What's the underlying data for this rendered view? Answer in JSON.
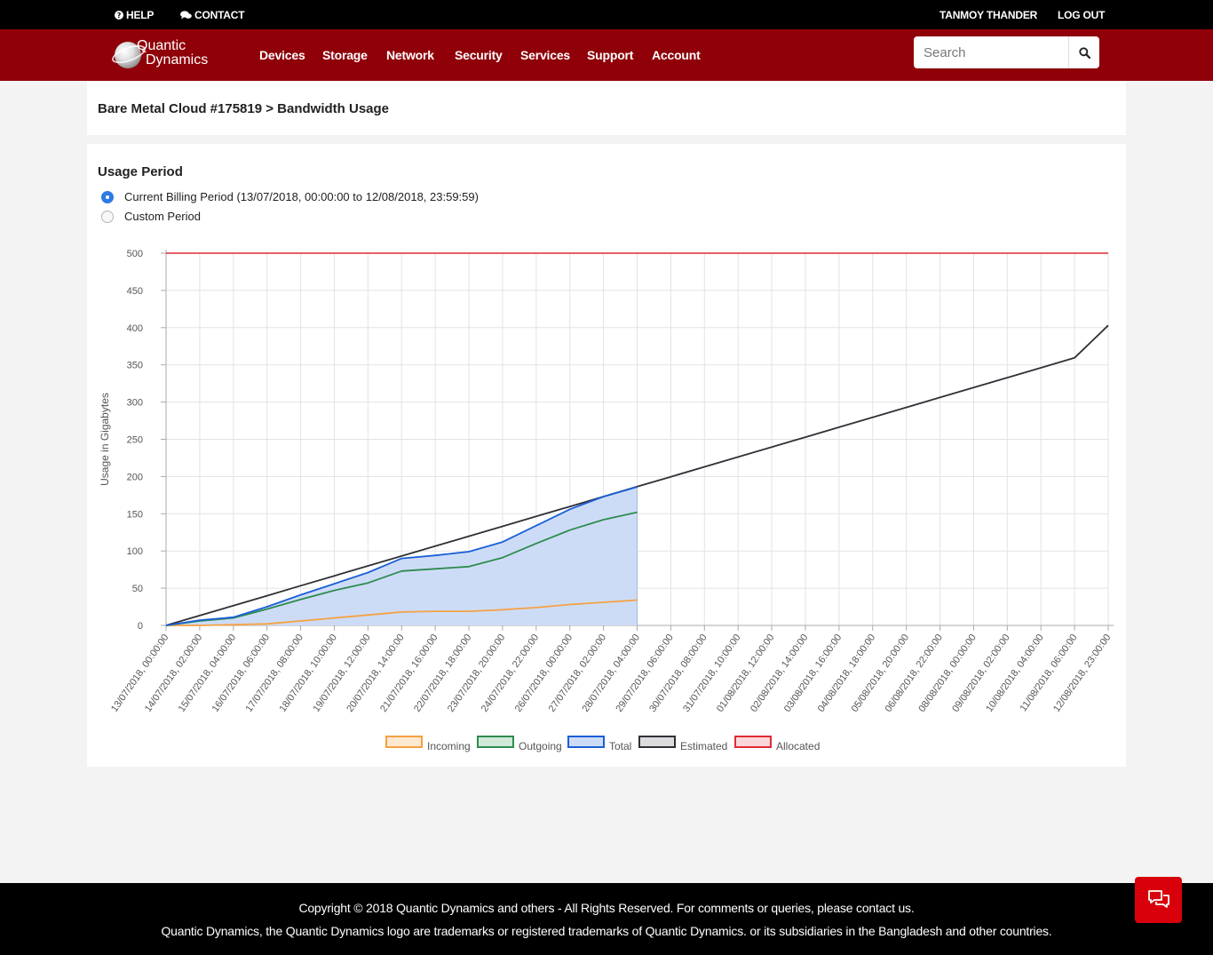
{
  "topbar": {
    "help": "HELP",
    "contact": "CONTACT",
    "user": "TANMOY THANDER",
    "logout": "LOG OUT"
  },
  "brand": {
    "line1": "Quantic",
    "line2": "Dynamics"
  },
  "nav": {
    "items": [
      "Devices",
      "Storage",
      "Network",
      "Security",
      "Services",
      "Support",
      "Account"
    ]
  },
  "search": {
    "placeholder": "Search",
    "value": ""
  },
  "breadcrumb": "Bare Metal Cloud #175819 > Bandwidth Usage",
  "usage_period": {
    "title": "Usage Period",
    "options": [
      {
        "label": "Current Billing Period (13/07/2018, 00:00:00 to 12/08/2018, 23:59:59)",
        "selected": true
      },
      {
        "label": "Custom Period",
        "selected": false
      }
    ]
  },
  "chart_data": {
    "type": "line",
    "title": "",
    "xlabel": "",
    "ylabel": "Usage in Gigabytes",
    "ylim": [
      0,
      500
    ],
    "yticks": [
      0,
      50,
      100,
      150,
      200,
      250,
      300,
      350,
      400,
      450,
      500
    ],
    "grid": true,
    "legend_position": "bottom",
    "x": [
      "13/07/2018, 00:00:00",
      "14/07/2018, 02:00:00",
      "15/07/2018, 04:00:00",
      "16/07/2018, 06:00:00",
      "17/07/2018, 08:00:00",
      "18/07/2018, 10:00:00",
      "19/07/2018, 12:00:00",
      "20/07/2018, 14:00:00",
      "21/07/2018, 16:00:00",
      "22/07/2018, 18:00:00",
      "23/07/2018, 20:00:00",
      "24/07/2018, 22:00:00",
      "26/07/2018, 00:00:00",
      "27/07/2018, 02:00:00",
      "28/07/2018, 04:00:00",
      "29/07/2018, 06:00:00",
      "30/07/2018, 08:00:00",
      "31/07/2018, 10:00:00",
      "01/08/2018, 12:00:00",
      "02/08/2018, 14:00:00",
      "03/08/2018, 16:00:00",
      "04/08/2018, 18:00:00",
      "05/08/2018, 20:00:00",
      "06/08/2018, 22:00:00",
      "08/08/2018, 00:00:00",
      "09/08/2018, 02:00:00",
      "10/08/2018, 04:00:00",
      "11/08/2018, 06:00:00",
      "12/08/2018, 23:00:00"
    ],
    "series": [
      {
        "name": "Incoming",
        "color": "#f5a142",
        "fill": "#fde8d0",
        "values": [
          0,
          0,
          1,
          2,
          6,
          10,
          14,
          18,
          19,
          19,
          21,
          24,
          28,
          31,
          34,
          null,
          null,
          null,
          null,
          null,
          null,
          null,
          null,
          null,
          null,
          null,
          null,
          null,
          null
        ]
      },
      {
        "name": "Outgoing",
        "color": "#2e8b4f",
        "fill": "#cfe8d8",
        "values": [
          0,
          6,
          10,
          22,
          35,
          47,
          57,
          73,
          76,
          79,
          91,
          110,
          128,
          142,
          152,
          null,
          null,
          null,
          null,
          null,
          null,
          null,
          null,
          null,
          null,
          null,
          null,
          null,
          null
        ]
      },
      {
        "name": "Total",
        "color": "#1a5fd6",
        "fill": "#cddcf6",
        "values": [
          0,
          7,
          11,
          25,
          41,
          56,
          71,
          90,
          94,
          99,
          112,
          134,
          156,
          173,
          186,
          null,
          null,
          null,
          null,
          null,
          null,
          null,
          null,
          null,
          null,
          null,
          null,
          null,
          null
        ]
      },
      {
        "name": "Estimated",
        "color": "#2f3137",
        "fill": "#dcdcdc",
        "values": [
          0,
          13.3,
          26.6,
          39.9,
          53.3,
          66.6,
          79.9,
          93.2,
          106.5,
          119.8,
          133.1,
          146.4,
          159.7,
          173.0,
          186.4,
          199.7,
          213.0,
          226.3,
          239.6,
          252.9,
          266.2,
          279.5,
          292.8,
          306.2,
          319.5,
          332.8,
          346.1,
          359.4,
          403
        ]
      },
      {
        "name": "Allocated",
        "color": "#e02b35",
        "fill": "#fbd6d9",
        "values": [
          500,
          500,
          500,
          500,
          500,
          500,
          500,
          500,
          500,
          500,
          500,
          500,
          500,
          500,
          500,
          500,
          500,
          500,
          500,
          500,
          500,
          500,
          500,
          500,
          500,
          500,
          500,
          500,
          500
        ]
      }
    ]
  },
  "footer": {
    "line1": "Copyright © 2018 Quantic Dynamics and others - All Rights Reserved. For comments or queries, please contact us.",
    "line2": "Quantic Dynamics, the Quantic Dynamics logo are trademarks or registered trademarks of Quantic Dynamics. or its subsidiaries in the Bangladesh and other countries."
  }
}
